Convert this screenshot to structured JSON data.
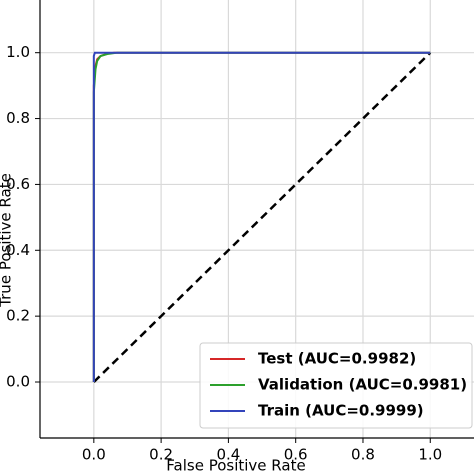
{
  "chart_data": {
    "type": "line",
    "x_label": "False Positive Rate",
    "y_label": "True Positive Rate",
    "xlim": [
      -0.16,
      1.13
    ],
    "ylim": [
      -0.17,
      1.16
    ],
    "xticks": [
      {
        "value": 0,
        "label": "0.0"
      },
      0.2,
      0.4,
      0.6,
      0.8,
      {
        "value": 1,
        "label": "1.0"
      }
    ],
    "yticks": [
      {
        "value": 0,
        "label": "0.0"
      },
      0.2,
      0.4,
      0.6,
      0.8,
      {
        "value": 1,
        "label": "1.0"
      }
    ],
    "grid": true,
    "legend": "lower right",
    "reference_line": {
      "x": [
        0,
        1
      ],
      "y": [
        0,
        1
      ],
      "color": "#000000"
    },
    "series": [
      {
        "name": "Test (AUC=0.9982)",
        "color": "#d62728",
        "x": [
          0,
          0,
          0.005,
          0.01,
          0.02,
          0.04,
          0.06,
          1
        ],
        "y": [
          0,
          0.9,
          0.96,
          0.98,
          0.99,
          0.997,
          1,
          1
        ]
      },
      {
        "name": "Validation (AUC=0.9981)",
        "color": "#2ca02c",
        "x": [
          0,
          0,
          0.005,
          0.01,
          0.02,
          0.04,
          0.07,
          1
        ],
        "y": [
          0,
          0.88,
          0.95,
          0.975,
          0.99,
          0.996,
          1,
          1
        ]
      },
      {
        "name": "Train (AUC=0.9999)",
        "color": "#3344bb",
        "x": [
          0,
          0,
          0.003,
          1
        ],
        "y": [
          0,
          0.99,
          1,
          1
        ]
      }
    ]
  }
}
